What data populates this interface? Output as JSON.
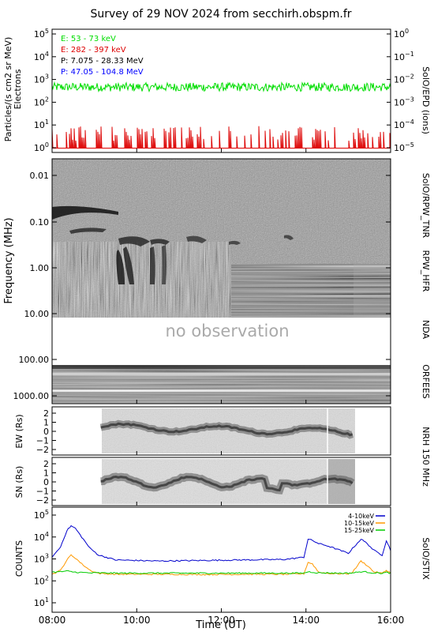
{
  "title": "Survey of 29 NOV 2024 from secchirh.obspm.fr",
  "colors": {
    "electrons_low": "#00dd00",
    "electrons_high": "#dd0000",
    "protons_low": "#000000",
    "protons_high": "#0000ff",
    "stix_low": "#0000cc",
    "stix_mid": "#ff9900",
    "stix_high": "#00cc00"
  },
  "time_axis": {
    "label": "Time (UT)",
    "ticks": [
      "08:00",
      "10:00",
      "12:00",
      "14:00",
      "16:00"
    ],
    "range_hours": [
      8,
      16
    ]
  },
  "panels": {
    "epd": {
      "ylabel_left": "Particles/(s cm2 sr MeV)",
      "ylabel_left2": "Electrons",
      "ylabel_right": "SolO/EPD (ions)",
      "left_ticks": [
        "10^5",
        "10^4",
        "10^3",
        "10^2",
        "10^1",
        "10^0"
      ],
      "right_ticks": [
        "10^0",
        "10^-1",
        "10^-2",
        "10^-3",
        "10^-4",
        "10^-5"
      ],
      "legend": [
        {
          "label": "E: 53 - 73 keV",
          "color": "#00dd00"
        },
        {
          "label": "E: 282 - 397 keV",
          "color": "#dd0000"
        },
        {
          "label": "P: 7.075 - 28.33 MeV",
          "color": "#000000"
        },
        {
          "label": "P: 47.05 - 104.8 MeV",
          "color": "#0000ff"
        }
      ]
    },
    "radio": {
      "ylabel": "Frequency (MHz)",
      "ticks": [
        "0.01",
        "0.10",
        "1.00",
        "10.00",
        "100.00",
        "1000.00"
      ],
      "labels_right": [
        "SolO/RPW_TNR",
        "RPW_HFR",
        "NDA",
        "ORFEES"
      ],
      "no_obs_text": "no observation"
    },
    "nrh_ew": {
      "ylabel": "EW (Rs)",
      "ticks": [
        "2",
        "1",
        "0",
        "−1",
        "−2"
      ]
    },
    "nrh_sn": {
      "ylabel": "SN (Rs)",
      "ticks": [
        "2",
        "1",
        "0",
        "−1",
        "−2"
      ]
    },
    "nrh_label": "NRH 150 MHz",
    "stix": {
      "ylabel": "COUNTS",
      "ylabel_right": "SolO/STIX",
      "ticks": [
        "10^5",
        "10^4",
        "10^3",
        "10^2",
        "10^1"
      ],
      "legend": [
        {
          "label": "4-10keV",
          "color": "#0000cc"
        },
        {
          "label": "10-15keV",
          "color": "#ff9900"
        },
        {
          "label": "15-25keV",
          "color": "#00cc00"
        }
      ]
    }
  },
  "chart_data": [
    {
      "type": "line",
      "name": "SolO/EPD",
      "ylim_log10": [
        0,
        5
      ],
      "series": [
        {
          "name": "E: 53 - 73 keV",
          "base_value": 450
        },
        {
          "name": "E: 282 - 397 keV",
          "base_value": 3
        }
      ]
    },
    {
      "type": "heatmap",
      "name": "Radio dynamic spectrum",
      "ylabel": "Frequency (MHz)",
      "y_ticks": [
        0.01,
        0.1,
        1.0,
        10.0,
        100.0,
        1000.0
      ],
      "gaps": [
        {
          "band_mhz": [
            10,
            200
          ],
          "text": "no observation"
        }
      ]
    },
    {
      "type": "line",
      "name": "NRH 150 MHz",
      "x_range_hours": [
        9.15,
        15.1
      ],
      "ylim": [
        -2,
        2
      ]
    },
    {
      "type": "line",
      "name": "SolO/STIX",
      "ylabel": "COUNTS",
      "ylim_log10": [
        1,
        5
      ],
      "x_hours": [
        8.0,
        8.2,
        8.35,
        8.45,
        8.55,
        8.7,
        8.9,
        9.1,
        9.5,
        10.5,
        11.5,
        12.5,
        13.5,
        13.95,
        14.05,
        14.15,
        14.3,
        14.5,
        14.8,
        15.0,
        15.1,
        15.3,
        15.45,
        15.6,
        15.8,
        15.9,
        16.0
      ],
      "series": [
        {
          "name": "4-10keV",
          "values": [
            1200,
            3500,
            20000,
            32000,
            25000,
            10000,
            3000,
            1500,
            900,
            800,
            850,
            900,
            950,
            1200,
            8000,
            7000,
            5000,
            4000,
            2500,
            1800,
            3000,
            8000,
            5000,
            2500,
            1500,
            7000,
            2500
          ]
        },
        {
          "name": "10-15keV",
          "values": [
            200,
            300,
            900,
            1500,
            1100,
            600,
            300,
            220,
            200,
            200,
            195,
            200,
            200,
            210,
            700,
            600,
            250,
            220,
            210,
            210,
            250,
            800,
            500,
            260,
            220,
            300,
            230
          ]
        },
        {
          "name": "15-25keV",
          "values": [
            250,
            260,
            280,
            260,
            250,
            240,
            230,
            230,
            225,
            225,
            225,
            225,
            225,
            225,
            260,
            250,
            230,
            230,
            225,
            225,
            230,
            260,
            250,
            230,
            225,
            240,
            225
          ]
        }
      ]
    }
  ]
}
